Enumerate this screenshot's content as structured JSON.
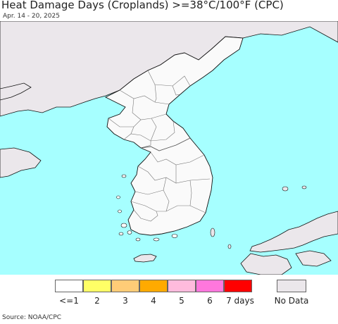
{
  "title": "Heat Damage Days (Croplands) >=38°C/100°F (CPC)",
  "date_range": "Apr. 14 - 20, 2025",
  "source": "Source: NOAA/CPC",
  "colors": {
    "ocean": "#a6ffff",
    "land_no_data": "#ebe7eb",
    "cropland_zero": "#fafafa",
    "border": "#666666",
    "coast": "#111111"
  },
  "legend": {
    "items": [
      {
        "label": "<=1",
        "color": "#ffffff"
      },
      {
        "label": "2",
        "color": "#ffff66"
      },
      {
        "label": "3",
        "color": "#ffcc77"
      },
      {
        "label": "4",
        "color": "#ffaa00"
      },
      {
        "label": "5",
        "color": "#ffbbdd"
      },
      {
        "label": "6",
        "color": "#ff77dd"
      },
      {
        "label": "7 days",
        "color": "#ff0000"
      }
    ],
    "no_data": {
      "label": "No Data",
      "color": "#ebe7eb"
    }
  }
}
